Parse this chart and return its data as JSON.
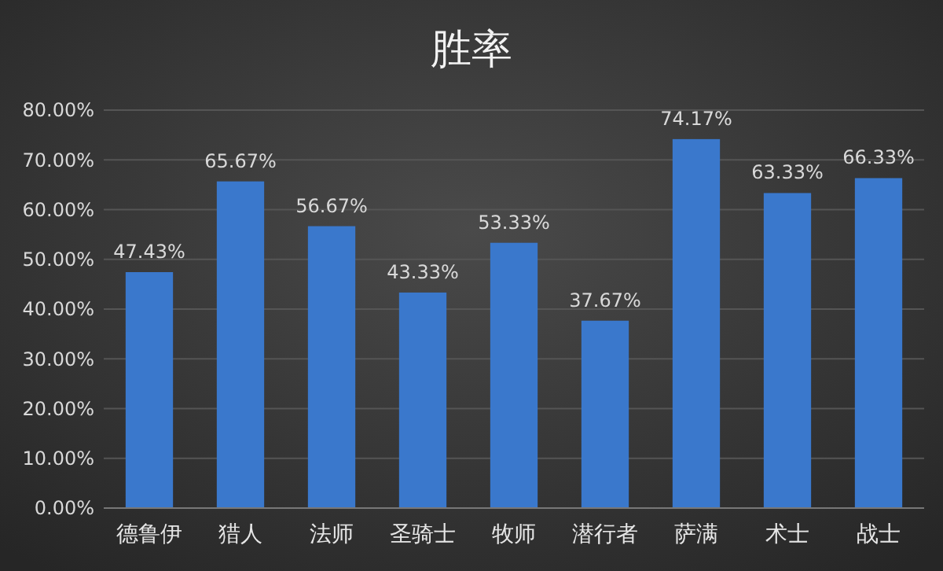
{
  "chart_data": {
    "type": "bar",
    "title": "胜率",
    "categories": [
      "德鲁伊",
      "猎人",
      "法师",
      "圣骑士",
      "牧师",
      "潜行者",
      "萨满",
      "术士",
      "战士"
    ],
    "values": [
      47.43,
      65.67,
      56.67,
      43.33,
      53.33,
      37.67,
      74.17,
      63.33,
      66.33
    ],
    "value_labels": [
      "47.43%",
      "65.67%",
      "56.67%",
      "43.33%",
      "53.33%",
      "37.67%",
      "74.17%",
      "63.33%",
      "66.33%"
    ],
    "color": "#3a78cc",
    "ylim": [
      0,
      80
    ],
    "yticks": [
      {
        "value": 0,
        "label": "0.00%"
      },
      {
        "value": 10,
        "label": "10.00%"
      },
      {
        "value": 20,
        "label": "20.00%"
      },
      {
        "value": 30,
        "label": "30.00%"
      },
      {
        "value": 40,
        "label": "40.00%"
      },
      {
        "value": 50,
        "label": "50.00%"
      },
      {
        "value": 60,
        "label": "60.00%"
      },
      {
        "value": 70,
        "label": "70.00%"
      },
      {
        "value": 80,
        "label": "80.00%"
      }
    ],
    "grid": "y"
  }
}
